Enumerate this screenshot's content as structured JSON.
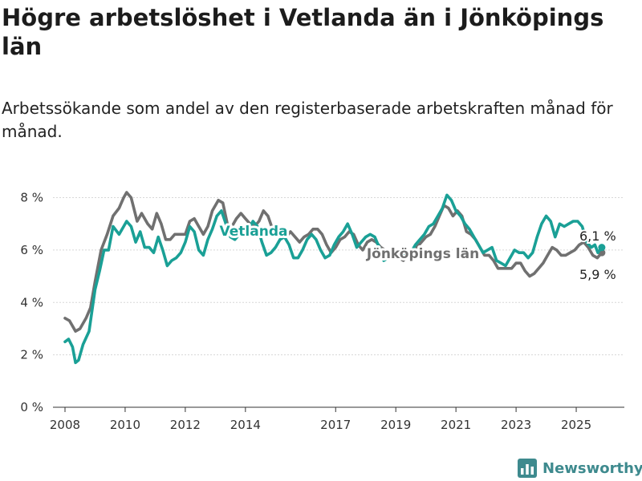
{
  "header": {
    "title": "Högre arbetslöshet i Vetlanda än i Jönköpings län",
    "subtitle": "Arbetssökande som andel av den registerbaserade arbetskraften månad för månad."
  },
  "logo": {
    "text": "Newsworthy",
    "icon": "bar-chart-icon",
    "color": "#3e8a8e"
  },
  "chart_data": {
    "type": "line",
    "title": "Högre arbetslöshet i Vetlanda än i Jönköpings län",
    "subtitle": "Arbetssökande som andel av den registerbaserade arbetskraften månad för månad.",
    "xlabel": "",
    "ylabel": "",
    "ylim": [
      0,
      8.2
    ],
    "xlim": [
      2007.6,
      2026.6
    ],
    "y_ticks": [
      0,
      2,
      4,
      6,
      8
    ],
    "y_tick_labels": [
      "0 %",
      "2 %",
      "4 %",
      "6 %",
      "8 %"
    ],
    "x_ticks": [
      2008,
      2010,
      2012,
      2014,
      2017,
      2019,
      2021,
      2023,
      2025
    ],
    "x_tick_labels": [
      "2008",
      "2010",
      "2012",
      "2014",
      "2017",
      "2019",
      "2021",
      "2023",
      "2025"
    ],
    "grid": "horizontal",
    "legend": "inline labels",
    "series": [
      {
        "name": "Jönköpings län",
        "color": "#707070",
        "end_label": "5,9 %",
        "points": [
          [
            2008.0,
            3.4
          ],
          [
            2008.15,
            3.3
          ],
          [
            2008.35,
            2.9
          ],
          [
            2008.5,
            3.0
          ],
          [
            2008.7,
            3.4
          ],
          [
            2008.85,
            3.8
          ],
          [
            2009.0,
            4.8
          ],
          [
            2009.2,
            6.0
          ],
          [
            2009.4,
            6.6
          ],
          [
            2009.6,
            7.3
          ],
          [
            2009.8,
            7.6
          ],
          [
            2009.95,
            8.0
          ],
          [
            2010.05,
            8.2
          ],
          [
            2010.2,
            8.0
          ],
          [
            2010.4,
            7.1
          ],
          [
            2010.55,
            7.4
          ],
          [
            2010.75,
            7.0
          ],
          [
            2010.9,
            6.8
          ],
          [
            2011.05,
            7.4
          ],
          [
            2011.2,
            7.0
          ],
          [
            2011.35,
            6.4
          ],
          [
            2011.5,
            6.4
          ],
          [
            2011.65,
            6.6
          ],
          [
            2011.85,
            6.6
          ],
          [
            2012.0,
            6.6
          ],
          [
            2012.15,
            7.1
          ],
          [
            2012.3,
            7.2
          ],
          [
            2012.45,
            6.9
          ],
          [
            2012.6,
            6.6
          ],
          [
            2012.75,
            6.9
          ],
          [
            2012.9,
            7.5
          ],
          [
            2013.1,
            7.9
          ],
          [
            2013.25,
            7.8
          ],
          [
            2013.4,
            7.0
          ],
          [
            2013.55,
            6.9
          ],
          [
            2013.7,
            7.2
          ],
          [
            2013.85,
            7.4
          ],
          [
            2014.0,
            7.2
          ],
          [
            2014.15,
            7.0
          ],
          [
            2014.3,
            6.9
          ],
          [
            2014.45,
            7.1
          ],
          [
            2014.6,
            7.5
          ],
          [
            2014.75,
            7.3
          ],
          [
            2014.9,
            6.8
          ],
          [
            2015.05,
            6.7
          ],
          [
            2015.2,
            6.8
          ],
          [
            2015.35,
            6.5
          ],
          [
            2015.5,
            6.7
          ],
          [
            2015.65,
            6.5
          ],
          [
            2015.8,
            6.3
          ],
          [
            2015.95,
            6.5
          ],
          [
            2016.1,
            6.6
          ],
          [
            2016.25,
            6.8
          ],
          [
            2016.4,
            6.8
          ],
          [
            2016.55,
            6.6
          ],
          [
            2016.7,
            6.2
          ],
          [
            2016.85,
            5.9
          ],
          [
            2017.0,
            6.1
          ],
          [
            2017.15,
            6.4
          ],
          [
            2017.3,
            6.5
          ],
          [
            2017.45,
            6.7
          ],
          [
            2017.6,
            6.6
          ],
          [
            2017.75,
            6.2
          ],
          [
            2017.9,
            6.0
          ],
          [
            2018.05,
            6.3
          ],
          [
            2018.2,
            6.4
          ],
          [
            2018.35,
            6.3
          ],
          [
            2018.5,
            6.1
          ],
          [
            2018.65,
            6.0
          ],
          [
            2018.8,
            5.9
          ],
          [
            2018.95,
            5.8
          ],
          [
            2019.1,
            5.7
          ],
          [
            2019.25,
            5.6
          ],
          [
            2019.4,
            5.8
          ],
          [
            2019.55,
            6.0
          ],
          [
            2019.7,
            6.1
          ],
          [
            2019.85,
            6.3
          ],
          [
            2020.0,
            6.5
          ],
          [
            2020.15,
            6.6
          ],
          [
            2020.3,
            6.9
          ],
          [
            2020.45,
            7.3
          ],
          [
            2020.6,
            7.7
          ],
          [
            2020.75,
            7.6
          ],
          [
            2020.9,
            7.3
          ],
          [
            2021.05,
            7.5
          ],
          [
            2021.2,
            7.3
          ],
          [
            2021.35,
            6.7
          ],
          [
            2021.5,
            6.6
          ],
          [
            2021.65,
            6.4
          ],
          [
            2021.8,
            6.1
          ],
          [
            2021.95,
            5.8
          ],
          [
            2022.1,
            5.8
          ],
          [
            2022.25,
            5.6
          ],
          [
            2022.4,
            5.3
          ],
          [
            2022.55,
            5.3
          ],
          [
            2022.7,
            5.3
          ],
          [
            2022.85,
            5.3
          ],
          [
            2023.0,
            5.5
          ],
          [
            2023.15,
            5.5
          ],
          [
            2023.3,
            5.2
          ],
          [
            2023.45,
            5.0
          ],
          [
            2023.6,
            5.1
          ],
          [
            2023.75,
            5.3
          ],
          [
            2023.9,
            5.5
          ],
          [
            2024.05,
            5.8
          ],
          [
            2024.2,
            6.1
          ],
          [
            2024.35,
            6.0
          ],
          [
            2024.5,
            5.8
          ],
          [
            2024.65,
            5.8
          ],
          [
            2024.8,
            5.9
          ],
          [
            2024.95,
            6.0
          ],
          [
            2025.1,
            6.2
          ],
          [
            2025.25,
            6.3
          ],
          [
            2025.4,
            6.1
          ],
          [
            2025.55,
            5.8
          ],
          [
            2025.7,
            5.7
          ],
          [
            2025.85,
            5.9
          ]
        ]
      },
      {
        "name": "Vetlanda",
        "color": "#1aa096",
        "end_label": "6,1 %",
        "points": [
          [
            2008.0,
            2.5
          ],
          [
            2008.12,
            2.6
          ],
          [
            2008.25,
            2.3
          ],
          [
            2008.35,
            1.7
          ],
          [
            2008.45,
            1.8
          ],
          [
            2008.6,
            2.4
          ],
          [
            2008.8,
            2.9
          ],
          [
            2009.0,
            4.5
          ],
          [
            2009.15,
            5.2
          ],
          [
            2009.3,
            6.0
          ],
          [
            2009.45,
            6.0
          ],
          [
            2009.6,
            6.9
          ],
          [
            2009.8,
            6.6
          ],
          [
            2009.95,
            6.9
          ],
          [
            2010.05,
            7.1
          ],
          [
            2010.2,
            6.9
          ],
          [
            2010.35,
            6.3
          ],
          [
            2010.5,
            6.7
          ],
          [
            2010.65,
            6.1
          ],
          [
            2010.8,
            6.1
          ],
          [
            2010.95,
            5.9
          ],
          [
            2011.1,
            6.5
          ],
          [
            2011.25,
            6.0
          ],
          [
            2011.4,
            5.4
          ],
          [
            2011.55,
            5.6
          ],
          [
            2011.7,
            5.7
          ],
          [
            2011.85,
            5.9
          ],
          [
            2012.0,
            6.3
          ],
          [
            2012.15,
            6.9
          ],
          [
            2012.3,
            6.7
          ],
          [
            2012.45,
            6.0
          ],
          [
            2012.6,
            5.8
          ],
          [
            2012.75,
            6.4
          ],
          [
            2012.9,
            6.8
          ],
          [
            2013.05,
            7.3
          ],
          [
            2013.2,
            7.5
          ],
          [
            2013.35,
            7.0
          ],
          [
            2013.5,
            6.5
          ],
          [
            2013.65,
            6.4
          ],
          [
            2013.8,
            6.6
          ],
          [
            2013.95,
            6.6
          ],
          [
            2014.1,
            6.8
          ],
          [
            2014.25,
            7.1
          ],
          [
            2014.4,
            6.9
          ],
          [
            2014.55,
            6.3
          ],
          [
            2014.7,
            5.8
          ],
          [
            2014.85,
            5.9
          ],
          [
            2015.0,
            6.1
          ],
          [
            2015.15,
            6.4
          ],
          [
            2015.3,
            6.5
          ],
          [
            2015.45,
            6.2
          ],
          [
            2015.6,
            5.7
          ],
          [
            2015.75,
            5.7
          ],
          [
            2015.9,
            6.0
          ],
          [
            2016.05,
            6.4
          ],
          [
            2016.2,
            6.6
          ],
          [
            2016.35,
            6.4
          ],
          [
            2016.5,
            6.0
          ],
          [
            2016.65,
            5.7
          ],
          [
            2016.8,
            5.8
          ],
          [
            2016.95,
            6.2
          ],
          [
            2017.1,
            6.5
          ],
          [
            2017.25,
            6.7
          ],
          [
            2017.4,
            7.0
          ],
          [
            2017.55,
            6.6
          ],
          [
            2017.7,
            6.1
          ],
          [
            2017.85,
            6.3
          ],
          [
            2018.0,
            6.5
          ],
          [
            2018.15,
            6.6
          ],
          [
            2018.3,
            6.5
          ],
          [
            2018.45,
            6.1
          ],
          [
            2018.6,
            5.6
          ],
          [
            2018.75,
            5.7
          ],
          [
            2018.9,
            5.9
          ],
          [
            2019.05,
            6.0
          ],
          [
            2019.2,
            5.8
          ],
          [
            2019.35,
            5.8
          ],
          [
            2019.5,
            5.9
          ],
          [
            2019.65,
            6.2
          ],
          [
            2019.8,
            6.4
          ],
          [
            2019.95,
            6.6
          ],
          [
            2020.1,
            6.9
          ],
          [
            2020.25,
            7.0
          ],
          [
            2020.4,
            7.3
          ],
          [
            2020.55,
            7.6
          ],
          [
            2020.7,
            8.1
          ],
          [
            2020.85,
            7.9
          ],
          [
            2021.0,
            7.5
          ],
          [
            2021.15,
            7.3
          ],
          [
            2021.3,
            7.0
          ],
          [
            2021.45,
            6.8
          ],
          [
            2021.6,
            6.5
          ],
          [
            2021.75,
            6.2
          ],
          [
            2021.9,
            5.9
          ],
          [
            2022.05,
            6.0
          ],
          [
            2022.2,
            6.1
          ],
          [
            2022.35,
            5.6
          ],
          [
            2022.5,
            5.5
          ],
          [
            2022.65,
            5.4
          ],
          [
            2022.8,
            5.7
          ],
          [
            2022.95,
            6.0
          ],
          [
            2023.1,
            5.9
          ],
          [
            2023.25,
            5.9
          ],
          [
            2023.4,
            5.7
          ],
          [
            2023.55,
            5.9
          ],
          [
            2023.7,
            6.5
          ],
          [
            2023.85,
            7.0
          ],
          [
            2024.0,
            7.3
          ],
          [
            2024.15,
            7.1
          ],
          [
            2024.3,
            6.5
          ],
          [
            2024.45,
            7.0
          ],
          [
            2024.6,
            6.9
          ],
          [
            2024.75,
            7.0
          ],
          [
            2024.9,
            7.1
          ],
          [
            2025.05,
            7.1
          ],
          [
            2025.2,
            6.9
          ],
          [
            2025.35,
            6.3
          ],
          [
            2025.5,
            6.1
          ],
          [
            2025.62,
            6.2
          ],
          [
            2025.72,
            5.9
          ],
          [
            2025.85,
            6.1
          ]
        ]
      }
    ],
    "inline_labels": [
      {
        "series": "Vetlanda",
        "text": "Vetlanda"
      },
      {
        "series": "Jönköpings län",
        "text": "Jönköpings län"
      }
    ]
  }
}
